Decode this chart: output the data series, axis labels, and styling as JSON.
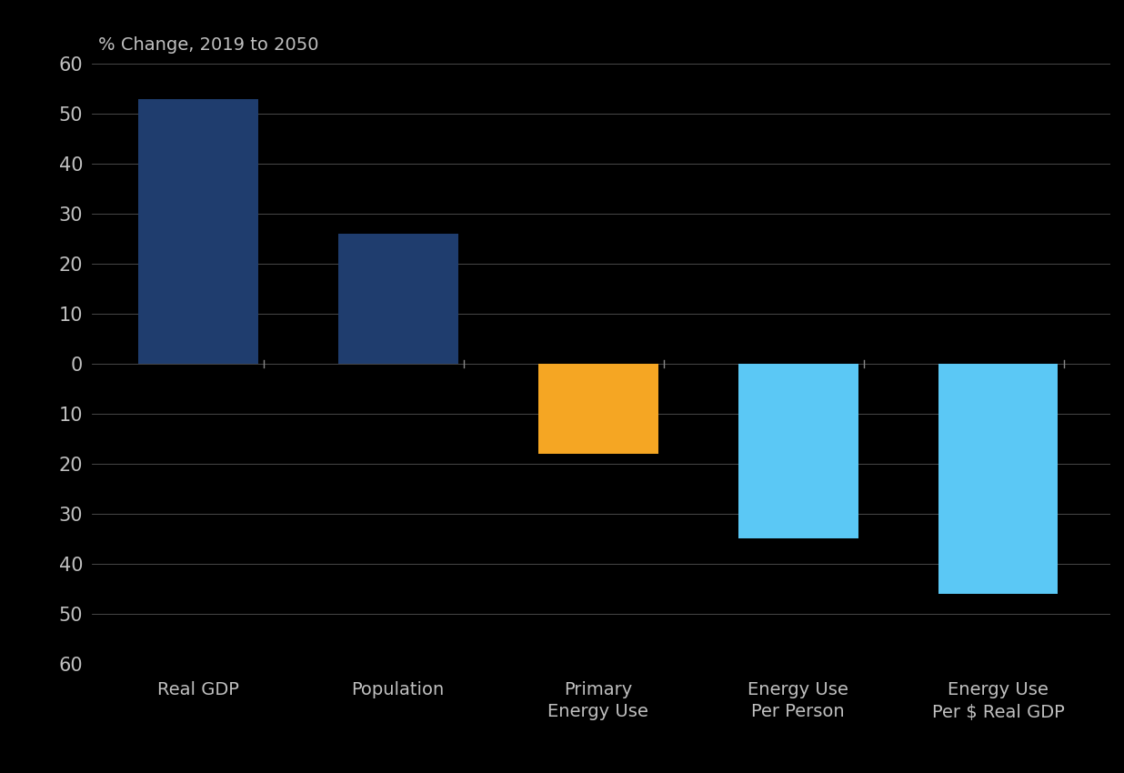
{
  "categories": [
    "Real GDP",
    "Population",
    "Primary\nEnergy Use",
    "Energy Use\nPer Person",
    "Energy Use\nPer $ Real GDP"
  ],
  "values": [
    53,
    26,
    -18,
    -35,
    -46
  ],
  "bar_colors": [
    "#1f3d6e",
    "#1f3d6e",
    "#f5a623",
    "#5bc8f5",
    "#5bc8f5"
  ],
  "ylabel": "% Change, 2019 to 2050",
  "ylim": [
    -60,
    60
  ],
  "yticks": [
    60,
    50,
    40,
    30,
    20,
    10,
    0,
    -10,
    -20,
    -30,
    -40,
    -50,
    -60
  ],
  "ytick_labels": [
    "60",
    "50",
    "40",
    "30",
    "20",
    "10",
    "0",
    "10",
    "20",
    "30",
    "40",
    "50",
    "60"
  ],
  "background_color": "#000000",
  "plot_bg_color": "#000000",
  "grid_color": "#3a3a3a",
  "text_color": "#c0c0c0",
  "bar_width": 0.6,
  "ylabel_fontsize": 14,
  "tick_fontsize": 15,
  "xtick_fontsize": 14
}
